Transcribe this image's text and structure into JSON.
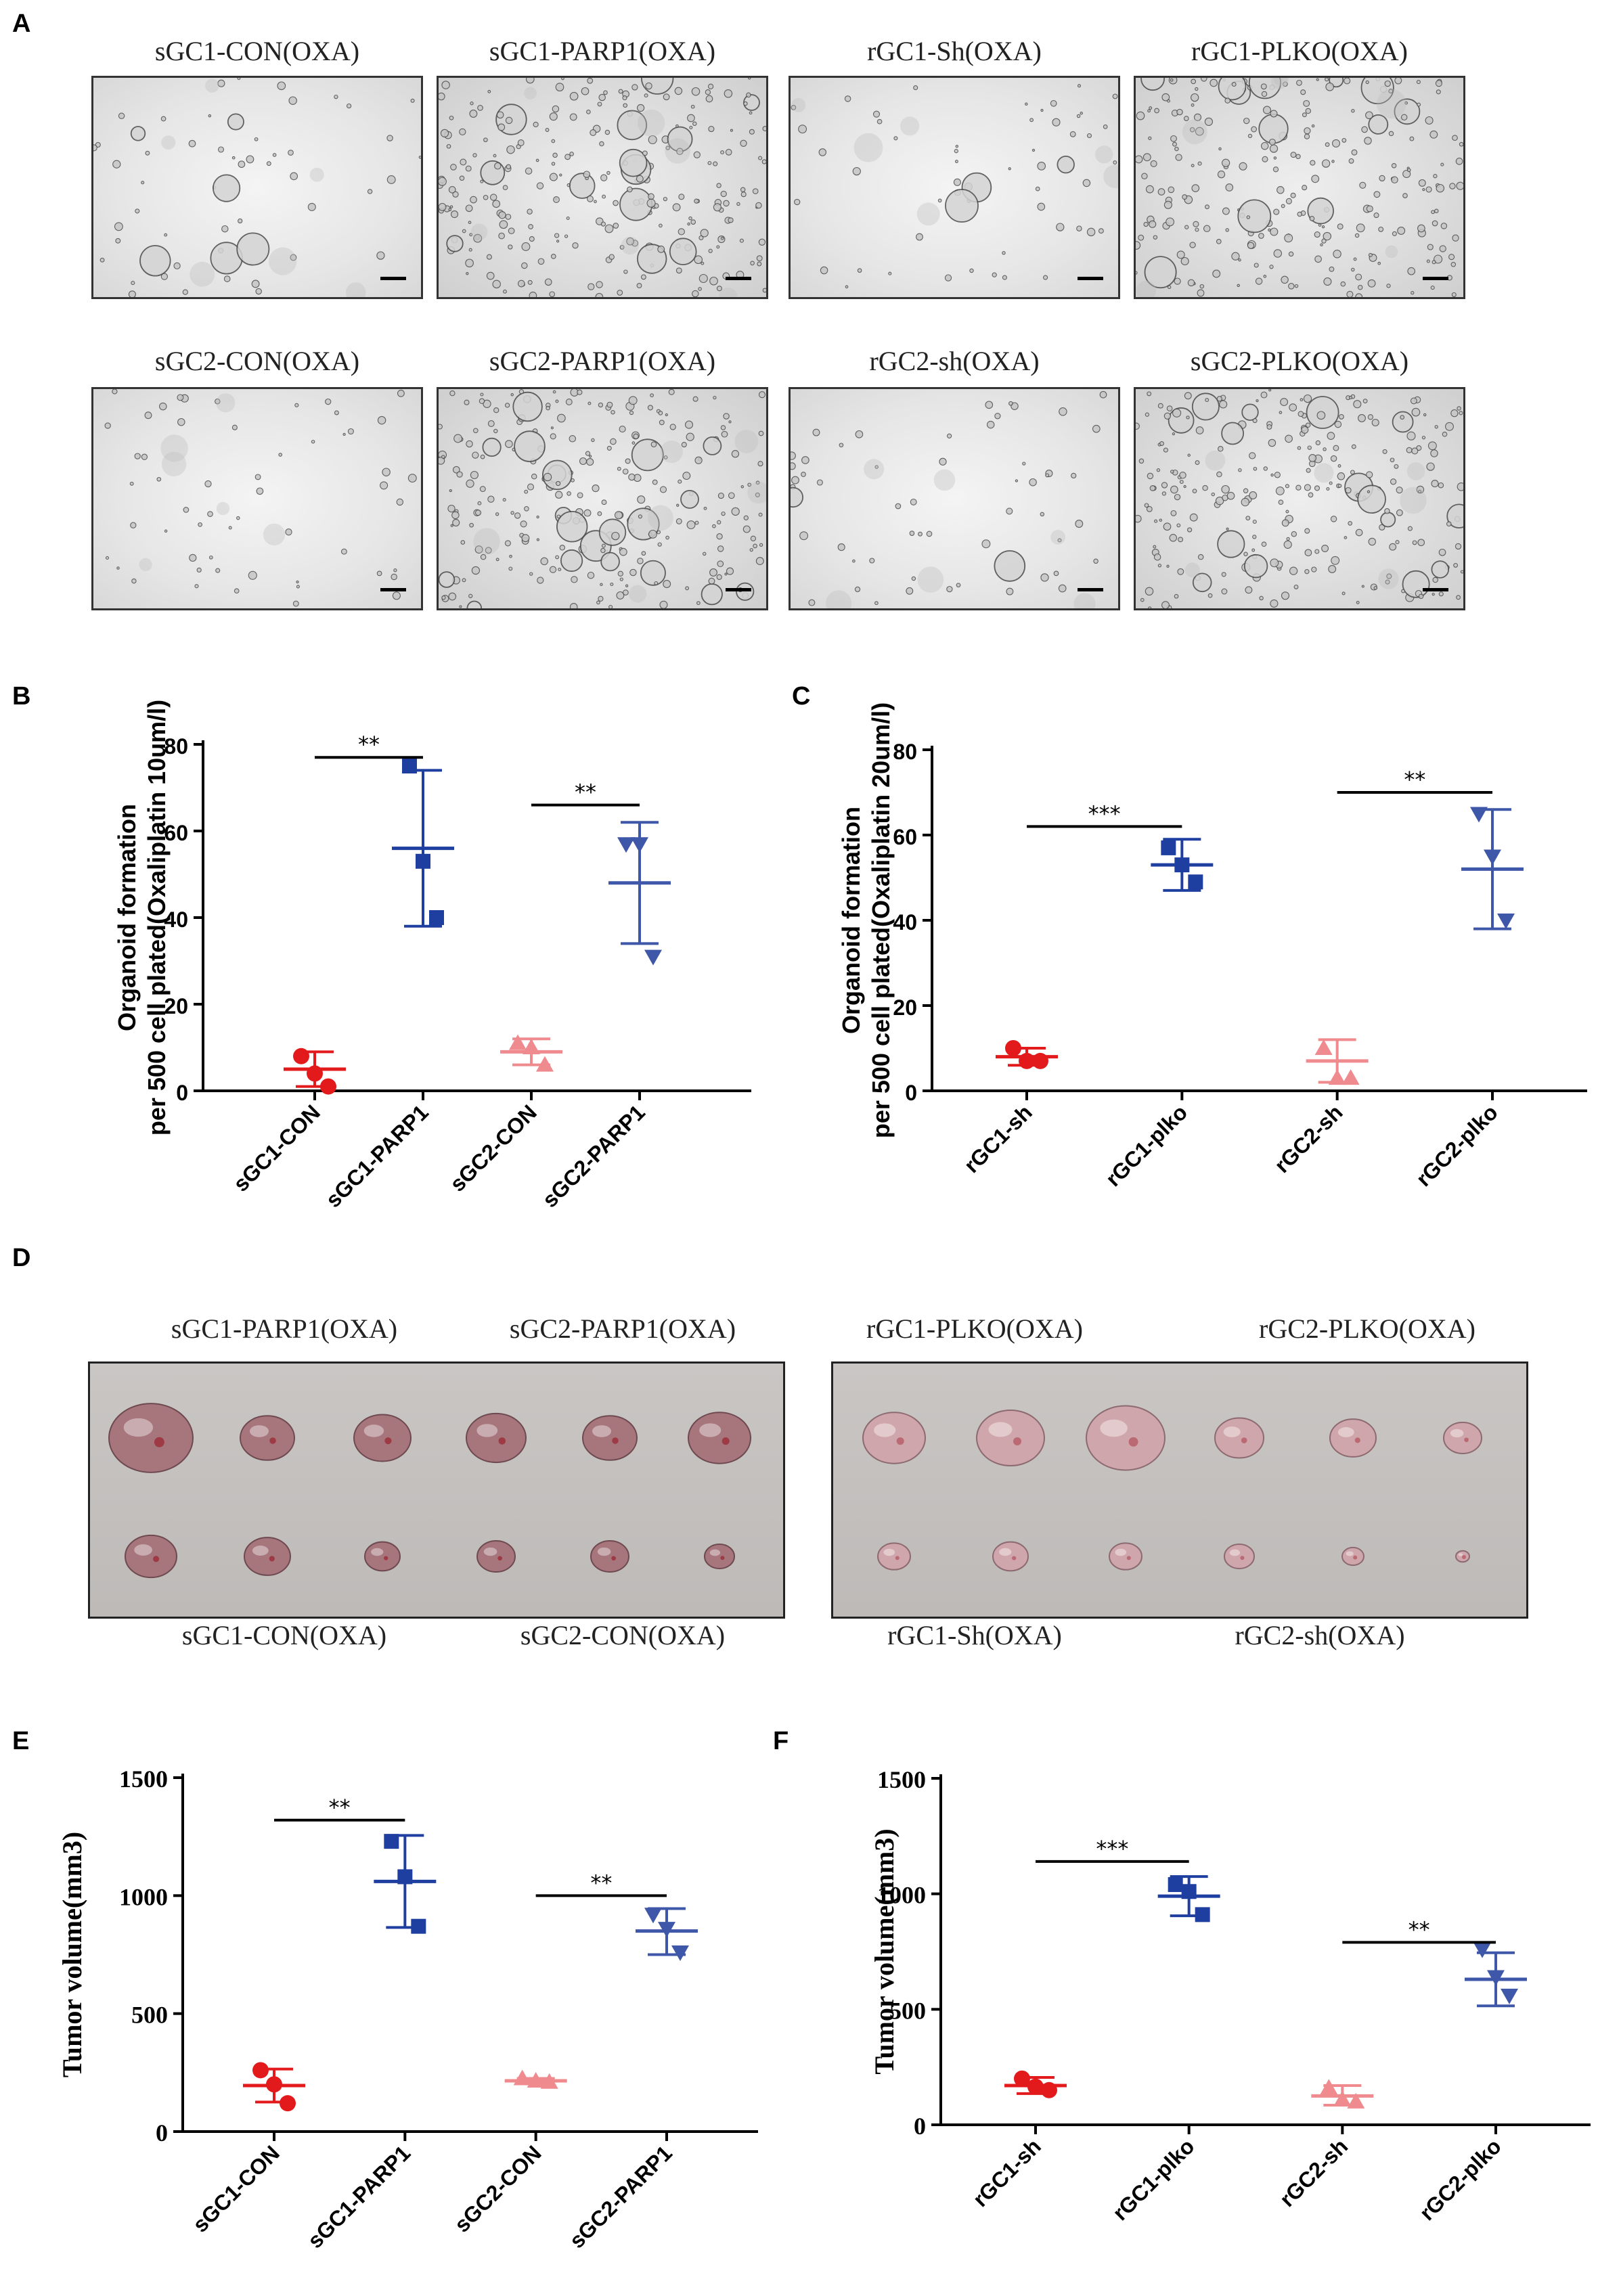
{
  "panel_labels": {
    "A": "A",
    "B": "B",
    "C": "C",
    "D": "D",
    "E": "E",
    "F": "F"
  },
  "micrographs": [
    {
      "title": "sGC1-CON(OXA)",
      "density": "sparse"
    },
    {
      "title": "sGC1-PARP1(OXA)",
      "density": "dense"
    },
    {
      "title": "rGC1-Sh(OXA)",
      "density": "sparse"
    },
    {
      "title": "rGC1-PLKO(OXA)",
      "density": "dense"
    },
    {
      "title": "sGC2-CON(OXA)",
      "density": "sparse"
    },
    {
      "title": "sGC2-PARP1(OXA)",
      "density": "dense"
    },
    {
      "title": "rGC2-sh(OXA)",
      "density": "sparse"
    },
    {
      "title": "sGC2-PLKO(OXA)",
      "density": "dense"
    }
  ],
  "tumor_photos": {
    "left": {
      "top_labels": [
        "sGC1-PARP1(OXA)",
        "sGC2-PARP1(OXA)"
      ],
      "bottom_labels": [
        "sGC1-CON(OXA)",
        "sGC2-CON(OXA)"
      ]
    },
    "right": {
      "top_labels": [
        "rGC1-PLKO(OXA)",
        "rGC2-PLKO(OXA)"
      ],
      "bottom_labels": [
        "rGC1-Sh(OXA)",
        "rGC2-sh(OXA)"
      ]
    }
  },
  "colors": {
    "red": "#e31a1c",
    "pink": "#ef8a8e",
    "blue": "#1f3fa0",
    "blue2": "#3f57a8",
    "axis": "#000000"
  },
  "chart_data": [
    {
      "id": "B",
      "type": "scatter",
      "ylabel_line1": "Organoid formation",
      "ylabel_line2": "per 500 cell plated(Oxaliplatin 10um/l)",
      "ylim": [
        0,
        80
      ],
      "yticks": [
        0,
        20,
        40,
        60,
        80
      ],
      "categories": [
        "sGC1-CON",
        "sGC1-PARP1",
        "sGC2-CON",
        "sGC2-PARP1"
      ],
      "groups": [
        {
          "category": "sGC1-CON",
          "marker": "circle",
          "color": "red",
          "points": [
            8,
            4,
            1
          ],
          "mean": 5,
          "sd_low": 1,
          "sd_high": 9
        },
        {
          "category": "sGC1-PARP1",
          "marker": "square",
          "color": "blue",
          "points": [
            75,
            53,
            40
          ],
          "mean": 56,
          "sd_low": 38,
          "sd_high": 74
        },
        {
          "category": "sGC2-CON",
          "marker": "triangle-up",
          "color": "pink",
          "points": [
            11,
            10,
            6
          ],
          "mean": 9,
          "sd_low": 6,
          "sd_high": 12
        },
        {
          "category": "sGC2-PARP1",
          "marker": "triangle-down",
          "color": "blue2",
          "points": [
            57,
            57,
            31
          ],
          "mean": 48,
          "sd_low": 34,
          "sd_high": 62
        }
      ],
      "significance": [
        {
          "label": "**",
          "from": "sGC1-CON",
          "to": "sGC1-PARP1",
          "y": 77
        },
        {
          "label": "**",
          "from": "sGC2-CON",
          "to": "sGC2-PARP1",
          "y": 66
        }
      ]
    },
    {
      "id": "C",
      "type": "scatter",
      "ylabel_line1": "Organoid formation",
      "ylabel_line2": "per 500 cell plated(Oxaliplatin 20um/l)",
      "ylim": [
        0,
        80
      ],
      "yticks": [
        0,
        20,
        40,
        60,
        80
      ],
      "categories": [
        "rGC1-sh",
        "rGC1-plko",
        "rGC2-sh",
        "rGC2-plko"
      ],
      "groups": [
        {
          "category": "rGC1-sh",
          "marker": "circle",
          "color": "red",
          "points": [
            10,
            7,
            7
          ],
          "mean": 8,
          "sd_low": 6,
          "sd_high": 10
        },
        {
          "category": "rGC1-plko",
          "marker": "square",
          "color": "blue",
          "points": [
            57,
            53,
            49
          ],
          "mean": 53,
          "sd_low": 47,
          "sd_high": 59
        },
        {
          "category": "rGC2-sh",
          "marker": "triangle-up",
          "color": "pink",
          "points": [
            10,
            3,
            3
          ],
          "mean": 7,
          "sd_low": 2,
          "sd_high": 12
        },
        {
          "category": "rGC2-plko",
          "marker": "triangle-down",
          "color": "blue2",
          "points": [
            65,
            55,
            40
          ],
          "mean": 52,
          "sd_low": 38,
          "sd_high": 66
        }
      ],
      "significance": [
        {
          "label": "***",
          "from": "rGC1-sh",
          "to": "rGC1-plko",
          "y": 62
        },
        {
          "label": "**",
          "from": "rGC2-sh",
          "to": "rGC2-plko",
          "y": 70
        }
      ]
    },
    {
      "id": "E",
      "type": "scatter",
      "ylabel_line1": "Tumor volume(mm3)",
      "ylabel_line2": "",
      "ylim": [
        0,
        1500
      ],
      "yticks": [
        0,
        500,
        1000,
        1500
      ],
      "categories": [
        "sGC1-CON",
        "sGC1-PARP1",
        "sGC2-CON",
        "sGC2-PARP1"
      ],
      "groups": [
        {
          "category": "sGC1-CON",
          "marker": "circle",
          "color": "red",
          "points": [
            260,
            200,
            120
          ],
          "mean": 195,
          "sd_low": 125,
          "sd_high": 265
        },
        {
          "category": "sGC1-PARP1",
          "marker": "square",
          "color": "blue",
          "points": [
            1230,
            1080,
            870
          ],
          "mean": 1060,
          "sd_low": 865,
          "sd_high": 1255
        },
        {
          "category": "sGC2-CON",
          "marker": "triangle-up",
          "color": "pink",
          "points": [
            225,
            215,
            210
          ],
          "mean": 215,
          "sd_low": 205,
          "sd_high": 225
        },
        {
          "category": "sGC2-PARP1",
          "marker": "triangle-down",
          "color": "blue2",
          "points": [
            920,
            860,
            760
          ],
          "mean": 850,
          "sd_low": 750,
          "sd_high": 945
        }
      ],
      "significance": [
        {
          "label": "**",
          "from": "sGC1-CON",
          "to": "sGC1-PARP1",
          "y": 1320
        },
        {
          "label": "**",
          "from": "sGC2-CON",
          "to": "sGC2-PARP1",
          "y": 1000
        }
      ]
    },
    {
      "id": "F",
      "type": "scatter",
      "ylabel_line1": "Tumor volume(mm3)",
      "ylabel_line2": "",
      "ylim": [
        0,
        1500
      ],
      "yticks": [
        0,
        500,
        1000,
        1500
      ],
      "categories": [
        "rGC1-sh",
        "rGC1-plko",
        "rGC2-sh",
        "rGC2-plko"
      ],
      "groups": [
        {
          "category": "rGC1-sh",
          "marker": "circle",
          "color": "red",
          "points": [
            200,
            165,
            150
          ],
          "mean": 170,
          "sd_low": 135,
          "sd_high": 205
        },
        {
          "category": "rGC1-plko",
          "marker": "square",
          "color": "blue",
          "points": [
            1040,
            1010,
            910
          ],
          "mean": 990,
          "sd_low": 905,
          "sd_high": 1075
        },
        {
          "category": "rGC2-sh",
          "marker": "triangle-up",
          "color": "pink",
          "points": [
            160,
            110,
            100
          ],
          "mean": 125,
          "sd_low": 85,
          "sd_high": 170
        },
        {
          "category": "rGC2-plko",
          "marker": "triangle-down",
          "color": "blue2",
          "points": [
            760,
            640,
            560
          ],
          "mean": 630,
          "sd_low": 515,
          "sd_high": 745
        }
      ],
      "significance": [
        {
          "label": "***",
          "from": "rGC1-sh",
          "to": "rGC1-plko",
          "y": 1140
        },
        {
          "label": "**",
          "from": "rGC2-sh",
          "to": "rGC2-plko",
          "y": 790
        }
      ]
    }
  ]
}
